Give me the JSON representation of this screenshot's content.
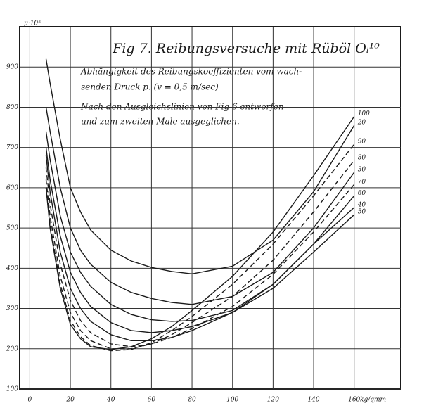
{
  "chart_data": {
    "type": "line",
    "title": "Fig 7. Reibungsversuche mit Rüböl Oᵢ¹⁰",
    "subtitle_lines": [
      "Abhängigkeit des Reibungskoeffizienten vom wach-",
      "senden Druck p. (v = 0,5 m/sec)",
      "Nach den Ausgleichslinien von Fig 6 entworfen",
      "und zum zweiten Male ausgeglichen."
    ],
    "y_label": "μ·10⁵",
    "x_label": "kg/qmm",
    "x": [
      8,
      10,
      15,
      20,
      25,
      30,
      40,
      50,
      60,
      70,
      80,
      100,
      120,
      140,
      160
    ],
    "xlim": [
      -5,
      183
    ],
    "ylim": [
      100,
      1000
    ],
    "xticks": [
      0,
      20,
      40,
      60,
      80,
      100,
      120,
      140,
      160
    ],
    "yticks": [
      100,
      200,
      300,
      400,
      500,
      600,
      700,
      800,
      900
    ],
    "grid": true,
    "series": [
      {
        "name": "20",
        "color": "#1a1a1a",
        "dashed": false,
        "values": [
          920,
          860,
          720,
          600,
          540,
          495,
          445,
          418,
          402,
          392,
          386,
          405,
          470,
          590,
          755
        ]
      },
      {
        "name": "30",
        "color": "#1a1a1a",
        "dashed": false,
        "values": [
          800,
          740,
          600,
          500,
          445,
          410,
          365,
          340,
          325,
          315,
          310,
          330,
          390,
          500,
          638
        ]
      },
      {
        "name": "40",
        "color": "#1a1a1a",
        "dashed": false,
        "values": [
          740,
          670,
          530,
          440,
          390,
          355,
          310,
          285,
          272,
          268,
          270,
          295,
          360,
          460,
          551
        ]
      },
      {
        "name": "50",
        "color": "#1a1a1a",
        "dashed": false,
        "values": [
          700,
          620,
          480,
          390,
          340,
          305,
          265,
          245,
          240,
          245,
          255,
          290,
          350,
          440,
          533
        ]
      },
      {
        "name": "60",
        "color": "#1a1a1a",
        "dashed": false,
        "values": [
          680,
          590,
          440,
          350,
          300,
          268,
          235,
          220,
          220,
          228,
          245,
          290,
          360,
          460,
          580
        ]
      },
      {
        "name": "70",
        "color": "#1a1a1a",
        "dashed": true,
        "values": [
          650,
          560,
          410,
          320,
          270,
          240,
          212,
          205,
          212,
          228,
          250,
          305,
          385,
          490,
          608
        ]
      },
      {
        "name": "80",
        "color": "#1a1a1a",
        "dashed": true,
        "values": [
          620,
          530,
          380,
          290,
          245,
          220,
          200,
          200,
          212,
          235,
          265,
          330,
          420,
          540,
          668
        ]
      },
      {
        "name": "90",
        "color": "#1a1a1a",
        "dashed": true,
        "values": [
          600,
          510,
          360,
          270,
          230,
          208,
          195,
          198,
          215,
          245,
          280,
          360,
          460,
          580,
          708
        ]
      },
      {
        "name": "100",
        "color": "#1a1a1a",
        "dashed": false,
        "values": [
          600,
          500,
          350,
          260,
          225,
          205,
          198,
          205,
          225,
          255,
          295,
          380,
          490,
          630,
          777
        ]
      }
    ]
  }
}
